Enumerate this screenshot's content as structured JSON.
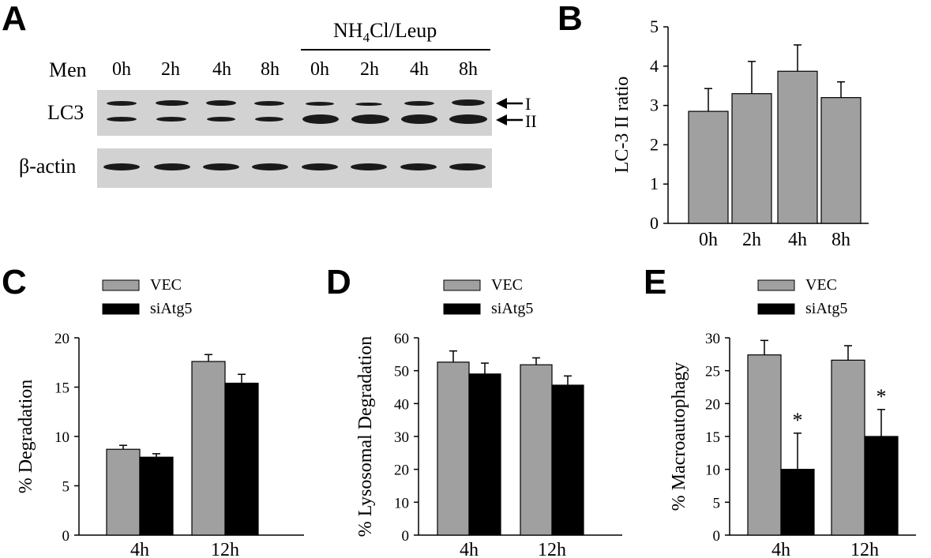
{
  "figure": {
    "panel_letters": [
      "A",
      "B",
      "C",
      "D",
      "E"
    ],
    "blot": {
      "header_label": "Men",
      "lanes": [
        "0h",
        "2h",
        "4h",
        "8h",
        "0h",
        "2h",
        "4h",
        "8h"
      ],
      "treatment_label_prefix": "NH",
      "treatment_label_sub": "4",
      "treatment_label_suffix": "Cl/Leup",
      "row_labels": [
        "LC3",
        "β-actin"
      ],
      "arrow_labels": [
        "I",
        "II"
      ],
      "colors": {
        "membrane": "#d2d2d2",
        "band": "#1a1a1a"
      }
    }
  },
  "chart_data": [
    {
      "type": "bar",
      "panel": "B",
      "categories": [
        "0h",
        "2h",
        "4h",
        "8h"
      ],
      "series": [
        {
          "values": [
            2.85,
            3.3,
            3.87,
            3.2
          ],
          "errors": [
            0.58,
            0.82,
            0.67,
            0.4
          ],
          "color": "#a0a0a0"
        }
      ],
      "xlabel": "",
      "ylabel": "LC-3 II ratio",
      "ylim": [
        0,
        5
      ],
      "yticks": [
        0,
        1,
        2,
        3,
        4,
        5
      ],
      "grid": false
    },
    {
      "type": "bar",
      "panel": "C",
      "categories": [
        "4h",
        "12h"
      ],
      "series": [
        {
          "name": "VEC",
          "values": [
            8.7,
            17.6
          ],
          "errors": [
            0.4,
            0.7
          ],
          "color": "#a0a0a0"
        },
        {
          "name": "siAtg5",
          "values": [
            7.9,
            15.4
          ],
          "errors": [
            0.35,
            0.9
          ],
          "color": "#000000"
        }
      ],
      "xlabel": "",
      "ylabel": "% Degradation",
      "ylim": [
        0,
        20
      ],
      "yticks": [
        0,
        5,
        10,
        15,
        20
      ],
      "legend": "top-left",
      "grid": false
    },
    {
      "type": "bar",
      "panel": "D",
      "categories": [
        "4h",
        "12h"
      ],
      "series": [
        {
          "name": "VEC",
          "values": [
            52.6,
            51.8
          ],
          "errors": [
            3.4,
            2.1
          ],
          "color": "#a0a0a0"
        },
        {
          "name": "siAtg5",
          "values": [
            49.0,
            45.6
          ],
          "errors": [
            3.3,
            2.8
          ],
          "color": "#000000"
        }
      ],
      "xlabel": "",
      "ylabel": "% Lysosomal Degradation",
      "ylim": [
        0,
        60
      ],
      "yticks": [
        0,
        10,
        20,
        30,
        40,
        50,
        60
      ],
      "legend": "top-left",
      "grid": false
    },
    {
      "type": "bar",
      "panel": "E",
      "categories": [
        "4h",
        "12h"
      ],
      "series": [
        {
          "name": "VEC",
          "values": [
            27.4,
            26.6
          ],
          "errors": [
            2.2,
            2.2
          ],
          "color": "#a0a0a0"
        },
        {
          "name": "siAtg5",
          "values": [
            10.0,
            15.0
          ],
          "errors": [
            5.5,
            4.1
          ],
          "color": "#000000",
          "annotations": [
            "*",
            "*"
          ]
        }
      ],
      "xlabel": "",
      "ylabel": "% Macroautophagy",
      "ylim": [
        0,
        30
      ],
      "yticks": [
        0,
        5,
        10,
        15,
        20,
        25,
        30
      ],
      "legend": "top-left",
      "grid": false
    }
  ]
}
